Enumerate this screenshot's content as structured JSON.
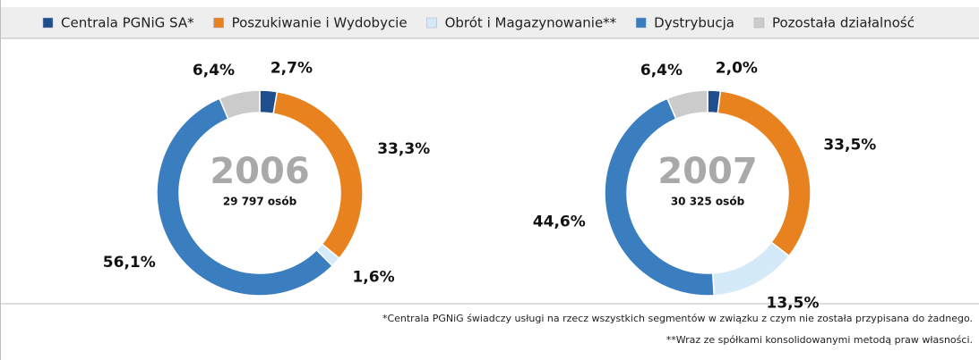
{
  "chart_data": [
    {
      "type": "pie",
      "title": "2006",
      "subtitle": "29 797 osób",
      "categories": [
        "Centrala PGNiG SA*",
        "Poszukiwanie i Wydobycie",
        "Obrót i Magazynowanie**",
        "Dystrybucja",
        "Pozostała działalność"
      ],
      "values": [
        2.7,
        33.3,
        1.6,
        56.1,
        6.4
      ],
      "value_labels": [
        "2,7%",
        "33,3%",
        "1,6%",
        "56,1%",
        "6,4%"
      ],
      "colors": [
        "#1f4e8c",
        "#e8821e",
        "#d4eaf8",
        "#3a7ebf",
        "#cbcbcb"
      ]
    },
    {
      "type": "pie",
      "title": "2007",
      "subtitle": "30 325 osób",
      "categories": [
        "Centrala PGNiG SA*",
        "Poszukiwanie i Wydobycie",
        "Obrót i Magazynowanie**",
        "Dystrybucja",
        "Pozostała działalność"
      ],
      "values": [
        2.0,
        33.5,
        13.5,
        44.6,
        6.4
      ],
      "value_labels": [
        "2,0%",
        "33,5%",
        "13,5%",
        "44,6%",
        "6,4%"
      ],
      "colors": [
        "#1f4e8c",
        "#e8821e",
        "#d4eaf8",
        "#3a7ebf",
        "#cbcbcb"
      ]
    }
  ],
  "notes": [
    "*Centrala PGNiG świadczy usługi na rzecz wszystkich segmentów w związku z czym nie została przypisana do żadnego.",
    "**Wraz ze spółkami konsolidowanymi metodą praw własności."
  ]
}
